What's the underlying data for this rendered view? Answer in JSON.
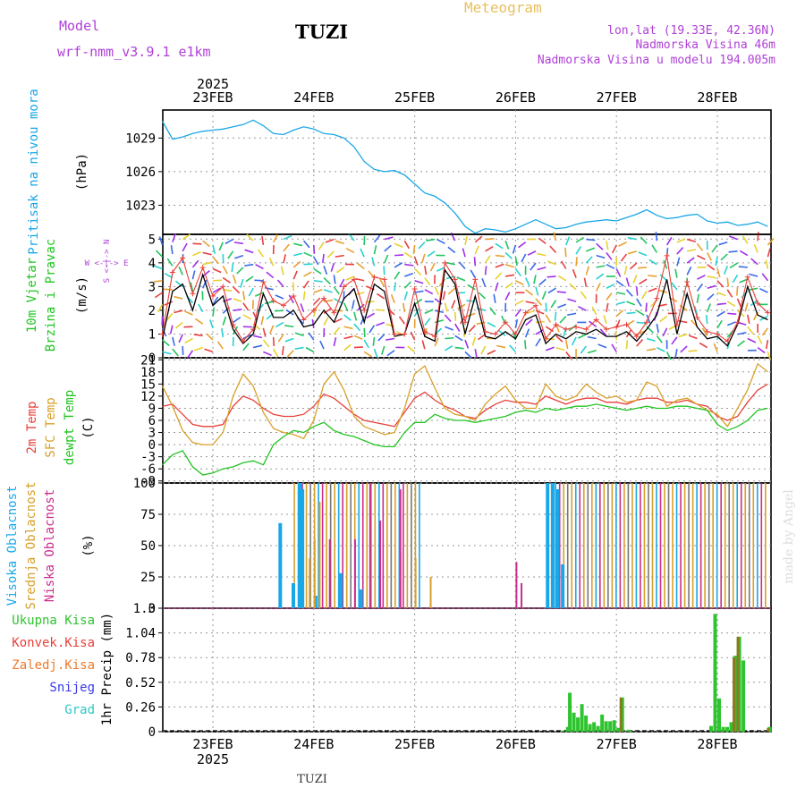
{
  "header": {
    "model_label": "Model",
    "model_name": "wrf-nmm_v3.9.1 e1km",
    "station": "TUZI",
    "meteogram": "Meteogram",
    "lonlat": "lon,lat (19.33E, 42.36N)",
    "elevation": "Nadmorska Visina 46m",
    "model_elevation": "Nadmorska Visina u modelu 194.005m"
  },
  "footer": {
    "station": "TUZI",
    "credit": "made by Angel"
  },
  "colors": {
    "pressure": "#1aa7e8",
    "temp2m": "#e8403a",
    "sfc": "#d8a02a",
    "dew": "#22c422",
    "high_cloud": "#1aa7e8",
    "mid_cloud": "#d8a02a",
    "low_cloud": "#cc2c8c",
    "total_precip": "#2fc42f",
    "conv": "#e8403a",
    "frozen": "#f07a2a",
    "snow": "#3a3ae8",
    "graupel": "#2ac8c8",
    "header_purple": "#b040d8",
    "header_orange": "#e8c060"
  },
  "chart_data": [
    {
      "type": "line",
      "panel": "pressure",
      "ylabel_lines": [
        "Pritisak na nivou mora"
      ],
      "unit": "(hPa)",
      "yticks": [
        1020,
        1023,
        1026,
        1029
      ],
      "ylim": [
        1020.4,
        1031.5
      ],
      "x_day": [
        0,
        0.1,
        0.2,
        0.3,
        0.4,
        0.5,
        0.6,
        0.7,
        0.8,
        0.9,
        1.0,
        1.1,
        1.2,
        1.3,
        1.4,
        1.5,
        1.6,
        1.7,
        1.8,
        1.9,
        2.0,
        2.1,
        2.2,
        2.3,
        2.4,
        2.5,
        2.6,
        2.7,
        2.8,
        2.9,
        3.0,
        3.1,
        3.2,
        3.3,
        3.4,
        3.5,
        3.6,
        3.7,
        3.8,
        3.9,
        4.0,
        4.1,
        4.2,
        4.3,
        4.4,
        4.5,
        4.6,
        4.7,
        4.8,
        4.9,
        5.0,
        5.1,
        5.2,
        5.3,
        5.4,
        5.5,
        5.6,
        5.7,
        5.8,
        5.9,
        6.0
      ],
      "series": [
        {
          "values": [
            1030.5,
            1028.9,
            1029.1,
            1029.4,
            1029.6,
            1029.7,
            1029.8,
            1030.0,
            1030.2,
            1030.6,
            1030.1,
            1029.4,
            1029.3,
            1029.7,
            1030.0,
            1029.8,
            1029.4,
            1029.3,
            1029.0,
            1028.2,
            1026.9,
            1026.2,
            1026.0,
            1026.1,
            1025.7,
            1024.9,
            1024.1,
            1023.8,
            1023.2,
            1022.3,
            1021.1,
            1020.5,
            1020.9,
            1020.8,
            1020.6,
            1020.9,
            1021.3,
            1021.7,
            1021.3,
            1020.9,
            1021.0,
            1021.3,
            1021.5,
            1021.6,
            1021.7,
            1021.6,
            1021.9,
            1022.2,
            1022.6,
            1022.1,
            1021.8,
            1021.9,
            1022.1,
            1022.2,
            1021.6,
            1021.4,
            1021.5,
            1021.2,
            1021.3,
            1021.5,
            1021.1
          ]
        }
      ]
    },
    {
      "type": "line",
      "panel": "wind",
      "ylabel_lines": [
        "10m Vjetar",
        "Brzina i Pravac"
      ],
      "unit": "(m/s)",
      "compass": "W <-|-> E",
      "compass_vertical": "S <-|-> N",
      "yticks": [
        0,
        1,
        2,
        3,
        4,
        5
      ],
      "ylim": [
        0,
        5.2
      ],
      "x_day": [
        0,
        0.1,
        0.2,
        0.3,
        0.4,
        0.5,
        0.6,
        0.7,
        0.8,
        0.9,
        1.0,
        1.1,
        1.2,
        1.3,
        1.4,
        1.5,
        1.6,
        1.7,
        1.8,
        1.9,
        2.0,
        2.1,
        2.2,
        2.3,
        2.4,
        2.5,
        2.6,
        2.7,
        2.8,
        2.9,
        3.0,
        3.1,
        3.2,
        3.3,
        3.4,
        3.5,
        3.6,
        3.7,
        3.8,
        3.9,
        4.0,
        4.1,
        4.2,
        4.3,
        4.4,
        4.5,
        4.6,
        4.7,
        4.8,
        4.9,
        5.0,
        5.1,
        5.2,
        5.3,
        5.4,
        5.5,
        5.6,
        5.7,
        5.8,
        5.9,
        6.0
      ],
      "series": [
        {
          "name_hidden": "speed",
          "values": [
            0.8,
            2.8,
            3.1,
            2.0,
            3.5,
            2.2,
            2.6,
            1.2,
            0.6,
            1.0,
            2.7,
            1.7,
            1.7,
            2.0,
            1.3,
            1.4,
            2.0,
            1.5,
            2.5,
            2.9,
            1.5,
            3.1,
            2.8,
            0.9,
            1.0,
            2.3,
            0.9,
            0.7,
            3.7,
            3.1,
            1.0,
            2.6,
            0.9,
            0.8,
            1.1,
            0.8,
            1.6,
            1.8,
            0.6,
            1.0,
            0.8,
            1.1,
            1.0,
            1.2,
            0.9,
            0.9,
            1.1,
            0.7,
            1.2,
            1.8,
            3.3,
            1.0,
            2.7,
            1.3,
            0.8,
            0.9,
            0.5,
            1.4,
            3.0,
            1.8,
            1.6
          ]
        },
        {
          "name_hidden": "gust",
          "values": [
            1.0,
            3.6,
            4.2,
            2.7,
            3.8,
            2.6,
            3.0,
            1.4,
            0.7,
            1.2,
            3.2,
            2.4,
            2.2,
            2.6,
            1.6,
            2.0,
            2.5,
            1.9,
            3.0,
            3.3,
            2.0,
            3.4,
            3.3,
            1.0,
            1.0,
            2.9,
            1.1,
            0.9,
            4.0,
            3.3,
            1.5,
            3.3,
            1.1,
            1.0,
            1.5,
            1.0,
            1.9,
            2.2,
            0.8,
            1.4,
            1.2,
            1.3,
            1.2,
            1.6,
            1.2,
            1.3,
            1.4,
            0.9,
            1.5,
            2.5,
            4.3,
            1.4,
            3.2,
            1.7,
            1.1,
            1.0,
            0.7,
            1.5,
            3.4,
            2.3,
            1.9
          ]
        }
      ]
    },
    {
      "type": "line",
      "panel": "temperature",
      "ylabel_lines": [
        "2m Temp",
        "SFC Temp",
        "dewpt Temp"
      ],
      "unit": "(C)",
      "yticks": [
        -9,
        -6,
        -3,
        0,
        3,
        6,
        9,
        12,
        15,
        18,
        21
      ],
      "ylim": [
        -9.5,
        21.5
      ],
      "x_day": [
        0,
        0.1,
        0.2,
        0.3,
        0.4,
        0.5,
        0.6,
        0.7,
        0.8,
        0.9,
        1.0,
        1.1,
        1.2,
        1.3,
        1.4,
        1.5,
        1.6,
        1.7,
        1.8,
        1.9,
        2.0,
        2.1,
        2.2,
        2.3,
        2.4,
        2.5,
        2.6,
        2.7,
        2.8,
        2.9,
        3.0,
        3.1,
        3.2,
        3.3,
        3.4,
        3.5,
        3.6,
        3.7,
        3.8,
        3.9,
        4.0,
        4.1,
        4.2,
        4.3,
        4.4,
        4.5,
        4.6,
        4.7,
        4.8,
        4.9,
        5.0,
        5.1,
        5.2,
        5.3,
        5.4,
        5.5,
        5.6,
        5.7,
        5.8,
        5.9,
        6.0
      ],
      "series": [
        {
          "name": "2m Temp",
          "values": [
            9.5,
            10.0,
            7.5,
            5.0,
            4.5,
            4.5,
            5.0,
            9.5,
            12.0,
            11.0,
            9.0,
            7.5,
            7.0,
            7.0,
            7.5,
            9.5,
            12.5,
            11.5,
            9.5,
            7.5,
            6.0,
            5.5,
            5.0,
            4.5,
            8.0,
            11.5,
            13.0,
            11.0,
            9.5,
            8.5,
            7.0,
            6.5,
            8.5,
            10.0,
            11.0,
            10.5,
            10.5,
            10.0,
            12.0,
            11.0,
            10.0,
            11.0,
            11.5,
            11.5,
            10.5,
            10.5,
            10.0,
            11.0,
            11.5,
            11.5,
            10.5,
            10.5,
            11.0,
            10.0,
            9.5,
            7.0,
            6.0,
            7.0,
            10.5,
            13.5,
            15.0
          ]
        },
        {
          "name": "SFC Temp",
          "values": [
            14.5,
            9.5,
            3.5,
            0.5,
            0.0,
            0.0,
            3.0,
            12.0,
            17.5,
            14.5,
            8.0,
            4.0,
            3.0,
            2.5,
            1.5,
            6.0,
            15.0,
            18.0,
            13.5,
            7.0,
            4.5,
            3.5,
            2.5,
            3.0,
            9.0,
            17.5,
            19.5,
            14.0,
            9.0,
            7.5,
            7.0,
            6.0,
            10.0,
            12.5,
            14.5,
            11.0,
            9.0,
            9.0,
            15.0,
            12.0,
            11.0,
            12.0,
            15.0,
            13.0,
            11.5,
            12.0,
            10.5,
            11.0,
            15.5,
            14.5,
            9.5,
            11.0,
            11.5,
            10.0,
            8.5,
            7.5,
            4.5,
            9.0,
            13.5,
            20.0,
            18.0
          ]
        },
        {
          "name": "dewpt Temp",
          "values": [
            -5.0,
            -2.5,
            -1.5,
            -5.5,
            -7.5,
            -7.0,
            -6.0,
            -5.5,
            -4.5,
            -4.0,
            -5.0,
            0.0,
            2.0,
            3.5,
            3.0,
            4.5,
            5.5,
            3.5,
            2.5,
            2.0,
            1.0,
            0.0,
            -0.5,
            -0.5,
            3.0,
            5.5,
            5.5,
            7.5,
            6.5,
            6.0,
            6.0,
            5.5,
            6.0,
            6.5,
            7.0,
            8.0,
            8.5,
            8.0,
            9.0,
            8.5,
            9.0,
            9.5,
            9.5,
            10.0,
            9.5,
            9.0,
            8.5,
            9.0,
            9.5,
            9.0,
            9.0,
            9.5,
            9.5,
            9.0,
            8.5,
            5.0,
            3.5,
            4.5,
            6.0,
            8.5,
            9.0
          ]
        }
      ]
    },
    {
      "type": "bar",
      "panel": "cloud",
      "ylabel_lines": [
        "Visoka Oblacnost",
        "Srednja Oblacnost",
        "Niska Oblacnost"
      ],
      "unit": "(%)",
      "yticks": [
        0,
        25,
        50,
        75,
        100
      ],
      "ylim": [
        0,
        100
      ],
      "cloud_segments": [
        {
          "layer": "high",
          "x_day": [
            1.15,
            1.28,
            1.35,
            1.37,
            1.5,
            1.75,
            1.95,
            3.8,
            3.85,
            3.9,
            3.95
          ],
          "values": [
            68,
            20,
            100,
            95,
            10,
            28,
            15,
            100,
            100,
            95,
            35
          ]
        },
        {
          "layer": "mid",
          "x_days_full": [
            1.3,
            2.55,
            3.85,
            6.0
          ],
          "values_full": 100,
          "x_day": [
            1.45,
            1.5,
            1.55,
            2.35,
            2.5,
            2.65
          ],
          "values": [
            40,
            55,
            85,
            45,
            40,
            25
          ]
        },
        {
          "layer": "low",
          "x_day": [
            1.65,
            1.9,
            2.05,
            2.15,
            2.35,
            3.5,
            3.55
          ],
          "values": [
            55,
            55,
            100,
            70,
            95,
            37,
            20
          ]
        }
      ]
    },
    {
      "type": "bar",
      "panel": "precip",
      "legend": [
        "Ukupna Kisa",
        "Konvek.Kisa",
        "Zaledj.Kisa",
        "Snijeg",
        "Grad"
      ],
      "ylabel_lines": [
        "1hr Precip"
      ],
      "unit": "(mm)",
      "yticks": [
        0,
        0.26,
        0.52,
        0.78,
        1.04,
        1.3
      ],
      "ylim": [
        0,
        1.3
      ],
      "x_day": [
        3.95,
        4.0,
        4.02,
        4.06,
        4.1,
        4.14,
        4.18,
        4.22,
        4.26,
        4.3,
        4.34,
        4.38,
        4.42,
        4.46,
        4.5,
        4.54,
        4.6,
        4.62,
        5.42,
        5.46,
        5.5,
        5.54,
        5.58,
        5.62,
        5.66,
        5.7,
        5.74,
        5.78,
        6.0
      ],
      "series": [
        {
          "name": "Ukupna Kisa",
          "values": [
            0.01,
            0.05,
            0.41,
            0.2,
            0.15,
            0.29,
            0.17,
            0.08,
            0.1,
            0.06,
            0.18,
            0.11,
            0.11,
            0.12,
            0.04,
            0.36,
            0.02,
            0.01,
            0.06,
            1.24,
            0.35,
            0.05,
            0.05,
            0.1,
            0.8,
            1.0,
            0.75,
            0.0,
            0.05
          ]
        },
        {
          "name": "Konvek.Kisa",
          "values": [
            0,
            0,
            0,
            0,
            0,
            0,
            0,
            0,
            0,
            0,
            0,
            0,
            0,
            0,
            0,
            0.36,
            0,
            0,
            0,
            0,
            0,
            0,
            0,
            0,
            0.78,
            1.0,
            0,
            0,
            0.04
          ]
        }
      ]
    }
  ],
  "x_axis": {
    "year_label": "2025",
    "days": [
      "23FEB",
      "24FEB",
      "25FEB",
      "26FEB",
      "27FEB",
      "28FEB"
    ]
  }
}
